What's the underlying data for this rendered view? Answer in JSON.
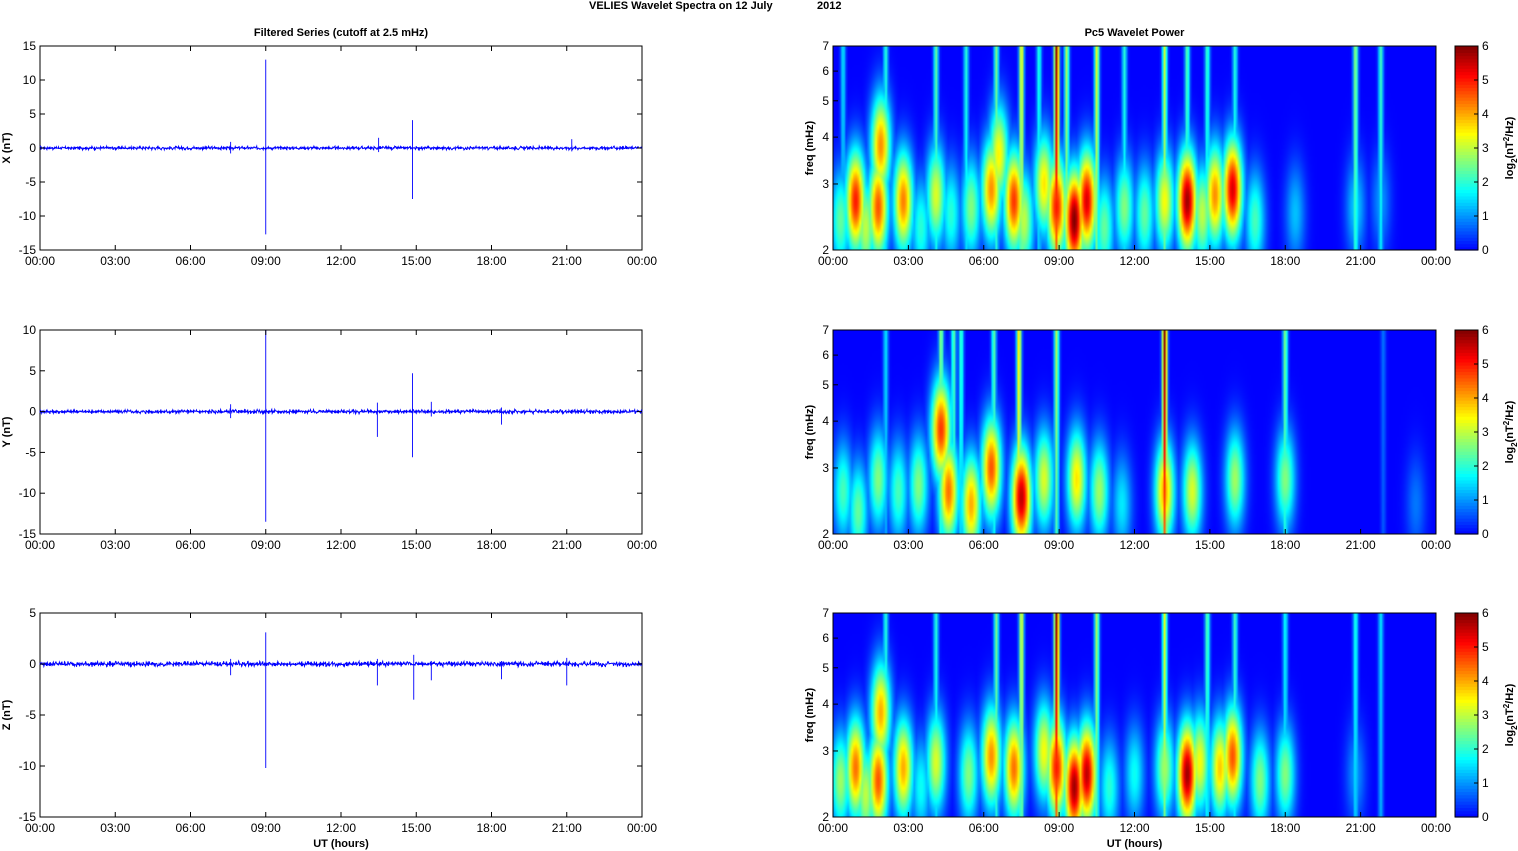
{
  "figure": {
    "title_left": "VELIES Wavelet Spectra on 12 July",
    "title_right": "2012"
  },
  "chart_data": [
    {
      "type": "line",
      "title": "Filtered Series (cutoff at 2.5 mHz)",
      "ylabel": "X (nT)",
      "xlabel": "",
      "xlim": [
        0,
        24
      ],
      "ylim": [
        -15,
        15
      ],
      "yticks": [
        -15,
        -10,
        -5,
        0,
        5,
        10,
        15
      ],
      "xtick_labels": [
        "00:00",
        "03:00",
        "06:00",
        "09:00",
        "12:00",
        "15:00",
        "18:00",
        "21:00",
        "00:00"
      ],
      "series_color": "#0000ff",
      "noise_amplitude": 0.3,
      "spikes": [
        {
          "x": 9.0,
          "ymin": -12.7,
          "ymax": 13.0
        },
        {
          "x": 14.85,
          "ymin": -7.5,
          "ymax": 4.1
        },
        {
          "x": 13.5,
          "ymin": -0.6,
          "ymax": 1.5
        },
        {
          "x": 7.6,
          "ymin": -0.8,
          "ymax": 0.9
        },
        {
          "x": 21.2,
          "ymin": -0.5,
          "ymax": 1.3
        }
      ]
    },
    {
      "type": "line",
      "title": "",
      "ylabel": "Y (nT)",
      "xlabel": "",
      "xlim": [
        0,
        24
      ],
      "ylim": [
        -15,
        10
      ],
      "yticks": [
        -15,
        -10,
        -5,
        0,
        5,
        10
      ],
      "xtick_labels": [
        "00:00",
        "03:00",
        "06:00",
        "09:00",
        "12:00",
        "15:00",
        "18:00",
        "21:00",
        "00:00"
      ],
      "series_color": "#0000ff",
      "noise_amplitude": 0.3,
      "spikes": [
        {
          "x": 9.0,
          "ymin": -13.5,
          "ymax": 10.0
        },
        {
          "x": 14.85,
          "ymin": -5.6,
          "ymax": 4.7
        },
        {
          "x": 13.45,
          "ymin": -3.1,
          "ymax": 1.1
        },
        {
          "x": 15.6,
          "ymin": -0.6,
          "ymax": 1.2
        },
        {
          "x": 18.4,
          "ymin": -1.6,
          "ymax": 0.5
        },
        {
          "x": 7.6,
          "ymin": -0.8,
          "ymax": 0.9
        }
      ]
    },
    {
      "type": "line",
      "title": "",
      "ylabel": "Z (nT)",
      "xlabel": "UT (hours)",
      "xlim": [
        0,
        24
      ],
      "ylim": [
        -15,
        5
      ],
      "yticks": [
        -15,
        -10,
        -5,
        0,
        5
      ],
      "xtick_labels": [
        "00:00",
        "03:00",
        "06:00",
        "09:00",
        "12:00",
        "15:00",
        "18:00",
        "21:00",
        "00:00"
      ],
      "series_color": "#0000ff",
      "noise_amplitude": 0.3,
      "spikes": [
        {
          "x": 9.0,
          "ymin": -10.2,
          "ymax": 3.1
        },
        {
          "x": 14.9,
          "ymin": -3.5,
          "ymax": 0.9
        },
        {
          "x": 13.45,
          "ymin": -2.1,
          "ymax": 0.5
        },
        {
          "x": 15.6,
          "ymin": -1.6,
          "ymax": 0.3
        },
        {
          "x": 18.4,
          "ymin": -1.5,
          "ymax": 0.3
        },
        {
          "x": 21.0,
          "ymin": -2.1,
          "ymax": 0.6
        },
        {
          "x": 7.6,
          "ymin": -1.1,
          "ymax": 0.5
        }
      ]
    },
    {
      "type": "heatmap",
      "title": "Pc5 Wavelet Power",
      "ylabel": "freq (mHz)",
      "xlabel": "",
      "colorbar_label": "log2(nT^2/Hz)",
      "xlim": [
        0,
        24
      ],
      "ylim": [
        2,
        7
      ],
      "yscale": "log",
      "yticks": [
        2,
        3,
        4,
        5,
        6,
        7
      ],
      "clim": [
        0,
        6
      ],
      "cticks": [
        0,
        1,
        2,
        3,
        4,
        5,
        6
      ],
      "xtick_labels": [
        "00:00",
        "03:00",
        "06:00",
        "09:00",
        "12:00",
        "15:00",
        "18:00",
        "21:00",
        "00:00"
      ],
      "blobs": [
        {
          "t": 0.3,
          "f": 2.4,
          "p": 2.4
        },
        {
          "t": 0.9,
          "f": 2.7,
          "p": 5.0
        },
        {
          "t": 1.3,
          "f": 2.3,
          "p": 3.0
        },
        {
          "t": 1.9,
          "f": 3.8,
          "p": 4.2
        },
        {
          "t": 1.8,
          "f": 2.6,
          "p": 4.6
        },
        {
          "t": 2.8,
          "f": 2.7,
          "p": 4.3
        },
        {
          "t": 3.5,
          "f": 2.3,
          "p": 2.0
        },
        {
          "t": 4.1,
          "f": 2.8,
          "p": 3.2
        },
        {
          "t": 4.7,
          "f": 2.5,
          "p": 2.0
        },
        {
          "t": 5.5,
          "f": 2.6,
          "p": 2.6
        },
        {
          "t": 6.3,
          "f": 2.9,
          "p": 4.2
        },
        {
          "t": 6.6,
          "f": 3.6,
          "p": 3.5
        },
        {
          "t": 7.2,
          "f": 2.7,
          "p": 4.8
        },
        {
          "t": 7.6,
          "f": 2.4,
          "p": 3.0
        },
        {
          "t": 8.4,
          "f": 3.0,
          "p": 3.6
        },
        {
          "t": 8.9,
          "f": 2.6,
          "p": 5.0
        },
        {
          "t": 9.6,
          "f": 2.4,
          "p": 6.0
        },
        {
          "t": 10.1,
          "f": 2.7,
          "p": 5.4
        },
        {
          "t": 10.8,
          "f": 2.3,
          "p": 2.4
        },
        {
          "t": 11.6,
          "f": 2.6,
          "p": 2.6
        },
        {
          "t": 12.4,
          "f": 2.5,
          "p": 2.4
        },
        {
          "t": 13.2,
          "f": 2.7,
          "p": 3.4
        },
        {
          "t": 14.1,
          "f": 2.7,
          "p": 5.8
        },
        {
          "t": 14.7,
          "f": 2.5,
          "p": 3.0
        },
        {
          "t": 15.2,
          "f": 2.8,
          "p": 4.2
        },
        {
          "t": 15.9,
          "f": 2.9,
          "p": 5.4
        },
        {
          "t": 16.8,
          "f": 2.4,
          "p": 2.2
        },
        {
          "t": 18.4,
          "f": 2.5,
          "p": 1.3
        },
        {
          "t": 20.8,
          "f": 2.6,
          "p": 1.4
        },
        {
          "t": 21.8,
          "f": 2.7,
          "p": 1.0
        }
      ],
      "streaks": [
        {
          "t": 0.4,
          "p": 1.6
        },
        {
          "t": 2.1,
          "p": 2.0
        },
        {
          "t": 4.1,
          "p": 2.4
        },
        {
          "t": 5.3,
          "p": 2.0
        },
        {
          "t": 6.5,
          "p": 2.6
        },
        {
          "t": 7.5,
          "p": 3.6
        },
        {
          "t": 8.2,
          "p": 2.0
        },
        {
          "t": 8.9,
          "p": 6.0
        },
        {
          "t": 9.3,
          "p": 3.0
        },
        {
          "t": 10.5,
          "p": 3.4
        },
        {
          "t": 11.6,
          "p": 2.0
        },
        {
          "t": 13.2,
          "p": 3.2
        },
        {
          "t": 14.1,
          "p": 2.4
        },
        {
          "t": 14.9,
          "p": 2.2
        },
        {
          "t": 16.0,
          "p": 2.0
        },
        {
          "t": 20.8,
          "p": 2.8
        },
        {
          "t": 21.8,
          "p": 2.2
        }
      ]
    },
    {
      "type": "heatmap",
      "title": "",
      "ylabel": "freq (mHz)",
      "xlabel": "",
      "colorbar_label": "log2(nT^2/Hz)",
      "xlim": [
        0,
        24
      ],
      "ylim": [
        2,
        7
      ],
      "yscale": "log",
      "yticks": [
        2,
        3,
        4,
        5,
        6,
        7
      ],
      "clim": [
        0,
        6
      ],
      "cticks": [
        0,
        1,
        2,
        3,
        4,
        5,
        6
      ],
      "xtick_labels": [
        "00:00",
        "03:00",
        "06:00",
        "09:00",
        "12:00",
        "15:00",
        "18:00",
        "21:00",
        "00:00"
      ],
      "blobs": [
        {
          "t": 0.4,
          "f": 2.6,
          "p": 2.2
        },
        {
          "t": 1.0,
          "f": 2.3,
          "p": 2.4
        },
        {
          "t": 1.8,
          "f": 2.8,
          "p": 2.6
        },
        {
          "t": 2.6,
          "f": 2.6,
          "p": 2.2
        },
        {
          "t": 3.4,
          "f": 2.7,
          "p": 2.6
        },
        {
          "t": 4.3,
          "f": 3.8,
          "p": 4.8
        },
        {
          "t": 4.6,
          "f": 2.6,
          "p": 4.4
        },
        {
          "t": 5.5,
          "f": 2.4,
          "p": 4.0
        },
        {
          "t": 6.3,
          "f": 3.0,
          "p": 4.6
        },
        {
          "t": 7.5,
          "f": 2.5,
          "p": 5.6
        },
        {
          "t": 8.4,
          "f": 2.8,
          "p": 3.2
        },
        {
          "t": 9.7,
          "f": 2.8,
          "p": 3.6
        },
        {
          "t": 10.6,
          "f": 2.6,
          "p": 2.8
        },
        {
          "t": 11.5,
          "f": 2.4,
          "p": 1.6
        },
        {
          "t": 13.2,
          "f": 2.6,
          "p": 4.0
        },
        {
          "t": 14.3,
          "f": 2.6,
          "p": 3.2
        },
        {
          "t": 16.0,
          "f": 2.8,
          "p": 2.8
        },
        {
          "t": 18.0,
          "f": 2.8,
          "p": 2.6
        },
        {
          "t": 23.2,
          "f": 2.4,
          "p": 0.8
        }
      ],
      "streaks": [
        {
          "t": 2.1,
          "p": 1.6
        },
        {
          "t": 4.3,
          "p": 2.8
        },
        {
          "t": 4.8,
          "p": 2.4
        },
        {
          "t": 5.1,
          "p": 2.2
        },
        {
          "t": 6.4,
          "p": 2.4
        },
        {
          "t": 7.4,
          "p": 3.8
        },
        {
          "t": 8.9,
          "p": 3.0
        },
        {
          "t": 13.2,
          "p": 6.0
        },
        {
          "t": 18.0,
          "p": 2.6
        },
        {
          "t": 21.9,
          "p": 0.8
        }
      ]
    },
    {
      "type": "heatmap",
      "title": "",
      "ylabel": "freq (mHz)",
      "xlabel": "UT (hours)",
      "colorbar_label": "log2(nT^2/Hz)",
      "xlim": [
        0,
        24
      ],
      "ylim": [
        2,
        7
      ],
      "yscale": "log",
      "yticks": [
        2,
        3,
        4,
        5,
        6,
        7
      ],
      "clim": [
        0,
        6
      ],
      "cticks": [
        0,
        1,
        2,
        3,
        4,
        5,
        6
      ],
      "xtick_labels": [
        "00:00",
        "03:00",
        "06:00",
        "09:00",
        "12:00",
        "15:00",
        "18:00",
        "21:00",
        "00:00"
      ],
      "blobs": [
        {
          "t": 0.3,
          "f": 2.5,
          "p": 2.8
        },
        {
          "t": 0.9,
          "f": 2.7,
          "p": 4.4
        },
        {
          "t": 1.3,
          "f": 2.3,
          "p": 3.0
        },
        {
          "t": 1.9,
          "f": 3.8,
          "p": 4.0
        },
        {
          "t": 1.8,
          "f": 2.5,
          "p": 4.6
        },
        {
          "t": 2.8,
          "f": 2.7,
          "p": 4.0
        },
        {
          "t": 3.5,
          "f": 2.4,
          "p": 1.8
        },
        {
          "t": 4.1,
          "f": 2.8,
          "p": 3.2
        },
        {
          "t": 5.4,
          "f": 2.6,
          "p": 2.6
        },
        {
          "t": 6.3,
          "f": 2.9,
          "p": 4.2
        },
        {
          "t": 7.2,
          "f": 2.7,
          "p": 4.4
        },
        {
          "t": 8.4,
          "f": 3.0,
          "p": 3.4
        },
        {
          "t": 8.9,
          "f": 2.7,
          "p": 5.0
        },
        {
          "t": 9.6,
          "f": 2.4,
          "p": 5.8
        },
        {
          "t": 10.1,
          "f": 2.6,
          "p": 5.6
        },
        {
          "t": 11.0,
          "f": 2.4,
          "p": 2.0
        },
        {
          "t": 12.0,
          "f": 2.6,
          "p": 1.8
        },
        {
          "t": 13.2,
          "f": 2.7,
          "p": 2.8
        },
        {
          "t": 14.1,
          "f": 2.6,
          "p": 5.8
        },
        {
          "t": 14.6,
          "f": 2.8,
          "p": 3.4
        },
        {
          "t": 15.4,
          "f": 2.7,
          "p": 3.8
        },
        {
          "t": 15.9,
          "f": 2.9,
          "p": 4.6
        },
        {
          "t": 17.0,
          "f": 2.5,
          "p": 2.6
        },
        {
          "t": 18.0,
          "f": 2.6,
          "p": 2.6
        },
        {
          "t": 20.8,
          "f": 2.6,
          "p": 1.0
        }
      ],
      "streaks": [
        {
          "t": 2.1,
          "p": 2.0
        },
        {
          "t": 4.1,
          "p": 2.0
        },
        {
          "t": 6.5,
          "p": 2.6
        },
        {
          "t": 7.5,
          "p": 3.4
        },
        {
          "t": 8.9,
          "p": 6.0
        },
        {
          "t": 10.5,
          "p": 3.0
        },
        {
          "t": 13.2,
          "p": 3.4
        },
        {
          "t": 14.9,
          "p": 2.4
        },
        {
          "t": 16.0,
          "p": 2.2
        },
        {
          "t": 18.0,
          "p": 1.8
        },
        {
          "t": 20.8,
          "p": 2.0
        },
        {
          "t": 21.8,
          "p": 1.6
        }
      ]
    }
  ]
}
